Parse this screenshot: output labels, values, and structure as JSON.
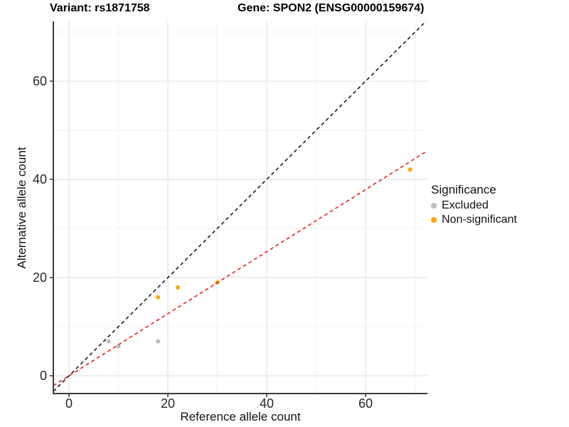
{
  "titles": {
    "variant": "Variant: rs1871758",
    "gene": "Gene: SPON2 (ENSG00000159674)"
  },
  "chart_data": {
    "type": "scatter",
    "title": "Variant: rs1871758 | Gene: SPON2 (ENSG00000159674)",
    "xlabel": "Reference allele count",
    "ylabel": "Alternative allele count",
    "xlim": [
      -3.17,
      72.51
    ],
    "ylim": [
      -3.62,
      72.18
    ],
    "x_ticks": [
      0,
      20,
      40,
      60
    ],
    "y_ticks": [
      0,
      20,
      40,
      60
    ],
    "x_minor_ticks": [
      10,
      30,
      50,
      70
    ],
    "y_minor_ticks": [
      10,
      30,
      50,
      70
    ],
    "grid": "major+minor",
    "legend_position": "right",
    "series": [
      {
        "name": "Excluded",
        "color": "#BEBEBE",
        "points": [
          [
            8,
            7
          ],
          [
            10,
            6
          ],
          [
            18,
            7
          ]
        ]
      },
      {
        "name": "Non-significant",
        "color": "#FFA500",
        "points": [
          [
            18,
            16
          ],
          [
            22,
            18
          ],
          [
            30,
            19
          ],
          [
            69,
            42
          ]
        ]
      }
    ],
    "lines": [
      {
        "name": "identity-line",
        "slope": 1,
        "intercept": 0,
        "color": "#1A1A1A",
        "style": "dashed"
      },
      {
        "name": "regression-line",
        "slope": 0.632,
        "intercept": 0,
        "color": "#EE2020",
        "style": "dashed"
      }
    ],
    "legend": {
      "title": "Significance",
      "items": [
        {
          "label": "Excluded",
          "color": "#BEBEBE"
        },
        {
          "label": "Non-significant",
          "color": "#FFA500"
        }
      ]
    }
  },
  "colors": {
    "grid_major": "#E5E5E5",
    "grid_minor": "#F1F1F1",
    "axis_line": "#3C3C3C",
    "tick_text": "#262626"
  }
}
